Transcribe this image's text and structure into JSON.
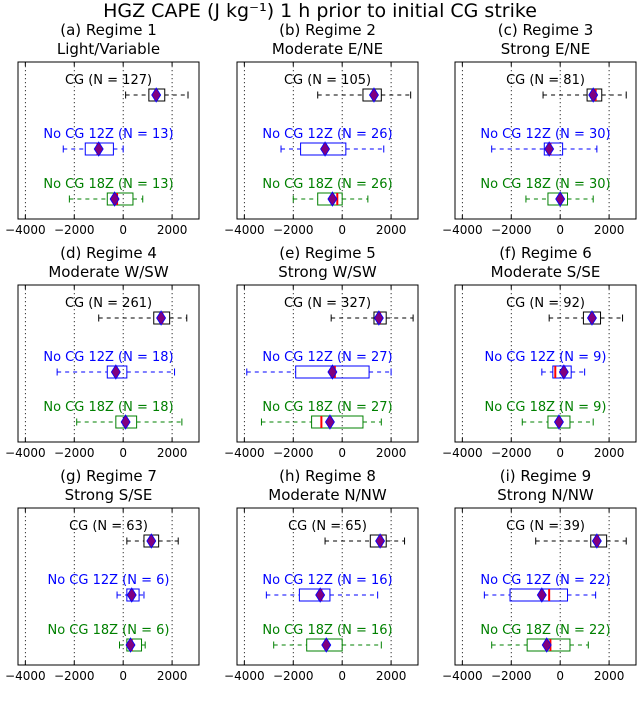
{
  "title": "HGZ CAPE (J kg⁻¹) 1 h prior to initial CG strike",
  "colors": {
    "cg": "#000000",
    "nocg12": "#0000ff",
    "nocg18": "#008000",
    "median": "#ff0000",
    "mean_fill": "#800080",
    "mean_edge": "#0000ff"
  },
  "chart_data": [
    {
      "type": "box",
      "title": "(a) Regime 1",
      "subtitle": "Light/Variable",
      "xlim": [
        -4300,
        3100
      ],
      "xticks": [
        -4000,
        -2000,
        0,
        2000
      ],
      "grid": "vertical dotted",
      "series": [
        {
          "label": "CG (N = 127)",
          "min": 100,
          "q1": 1050,
          "median": 1350,
          "q3": 1700,
          "max": 2650,
          "mean": 1350
        },
        {
          "label": "No CG 12Z (N = 13)",
          "min": -2450,
          "q1": -1550,
          "median": -1050,
          "q3": -400,
          "max": 0,
          "mean": -1000
        },
        {
          "label": "No CG 18Z (N = 13)",
          "min": -2200,
          "q1": -650,
          "median": -250,
          "q3": 400,
          "max": 800,
          "mean": -350
        }
      ]
    },
    {
      "type": "box",
      "title": "(b) Regime 2",
      "subtitle": "Moderate E/NE",
      "xlim": [
        -4300,
        3100
      ],
      "xticks": [
        -4000,
        -2000,
        0,
        2000
      ],
      "grid": "vertical dotted",
      "series": [
        {
          "label": "CG (N = 105)",
          "min": -1000,
          "q1": 850,
          "median": 1300,
          "q3": 1600,
          "max": 2800,
          "mean": 1300
        },
        {
          "label": "No CG 12Z (N = 26)",
          "min": -2500,
          "q1": -1700,
          "median": -700,
          "q3": 150,
          "max": 1700,
          "mean": -700
        },
        {
          "label": "No CG 18Z (N = 26)",
          "min": -2000,
          "q1": -1000,
          "median": -200,
          "q3": 0,
          "max": 1050,
          "mean": -400
        }
      ]
    },
    {
      "type": "box",
      "title": "(c) Regime 3",
      "subtitle": "Strong E/NE",
      "xlim": [
        -4300,
        3100
      ],
      "xticks": [
        -4000,
        -2000,
        0,
        2000
      ],
      "grid": "vertical dotted",
      "series": [
        {
          "label": "CG (N = 81)",
          "min": -700,
          "q1": 1100,
          "median": 1450,
          "q3": 1700,
          "max": 2700,
          "mean": 1350
        },
        {
          "label": "No CG 12Z (N = 30)",
          "min": -2800,
          "q1": -650,
          "median": -400,
          "q3": 100,
          "max": 1500,
          "mean": -450
        },
        {
          "label": "No CG 18Z (N = 30)",
          "min": -1400,
          "q1": -500,
          "median": 0,
          "q3": 300,
          "max": 1350,
          "mean": 0
        }
      ]
    },
    {
      "type": "box",
      "title": "(d) Regime 4",
      "subtitle": "Moderate W/SW",
      "xlim": [
        -4300,
        3100
      ],
      "xticks": [
        -4000,
        -2000,
        0,
        2000
      ],
      "grid": "vertical dotted",
      "series": [
        {
          "label": "CG (N = 261)",
          "min": -1000,
          "q1": 1250,
          "median": 1600,
          "q3": 1900,
          "max": 2600,
          "mean": 1550
        },
        {
          "label": "No CG 12Z (N = 18)",
          "min": -2700,
          "q1": -650,
          "median": -300,
          "q3": 150,
          "max": 2100,
          "mean": -300
        },
        {
          "label": "No CG 18Z (N = 18)",
          "min": -1900,
          "q1": -300,
          "median": 100,
          "q3": 550,
          "max": 2400,
          "mean": 100
        }
      ]
    },
    {
      "type": "box",
      "title": "(e) Regime 5",
      "subtitle": "Strong W/SW",
      "xlim": [
        -4300,
        3100
      ],
      "xticks": [
        -4000,
        -2000,
        0,
        2000
      ],
      "grid": "vertical dotted",
      "series": [
        {
          "label": "CG (N = 327)",
          "min": -450,
          "q1": 1300,
          "median": 1550,
          "q3": 1800,
          "max": 2900,
          "mean": 1500
        },
        {
          "label": "No CG 12Z (N = 27)",
          "min": -3900,
          "q1": -1900,
          "median": -300,
          "q3": 1100,
          "max": 2000,
          "mean": -400
        },
        {
          "label": "No CG 18Z (N = 27)",
          "min": -3300,
          "q1": -1250,
          "median": -850,
          "q3": 850,
          "max": 1600,
          "mean": -500
        }
      ]
    },
    {
      "type": "box",
      "title": "(f) Regime 6",
      "subtitle": "Moderate S/SE",
      "xlim": [
        -4300,
        3100
      ],
      "xticks": [
        -4000,
        -2000,
        0,
        2000
      ],
      "grid": "vertical dotted",
      "series": [
        {
          "label": "CG (N = 92)",
          "min": -450,
          "q1": 950,
          "median": 1300,
          "q3": 1650,
          "max": 2550,
          "mean": 1300
        },
        {
          "label": "No CG 12Z (N = 9)",
          "min": -750,
          "q1": -300,
          "median": -200,
          "q3": 450,
          "max": 1000,
          "mean": 150
        },
        {
          "label": "No CG 18Z (N = 9)",
          "min": -1550,
          "q1": -500,
          "median": -50,
          "q3": 400,
          "max": 1350,
          "mean": -50
        }
      ]
    },
    {
      "type": "box",
      "title": "(g) Regime 7",
      "subtitle": "Strong S/SE",
      "xlim": [
        -4300,
        3100
      ],
      "xticks": [
        -4000,
        -2000,
        0,
        2000
      ],
      "grid": "vertical dotted",
      "series": [
        {
          "label": "CG (N = 63)",
          "min": 150,
          "q1": 850,
          "median": 1150,
          "q3": 1450,
          "max": 2250,
          "mean": 1150
        },
        {
          "label": "No CG 12Z (N = 6)",
          "min": -250,
          "q1": 150,
          "median": 350,
          "q3": 650,
          "max": 850,
          "mean": 350
        },
        {
          "label": "No CG 18Z (N = 6)",
          "min": -150,
          "q1": 150,
          "median": 350,
          "q3": 750,
          "max": 900,
          "mean": 300
        }
      ]
    },
    {
      "type": "box",
      "title": "(h) Regime 8",
      "subtitle": "Moderate N/NW",
      "xlim": [
        -4300,
        3100
      ],
      "xticks": [
        -4000,
        -2000,
        0,
        2000
      ],
      "grid": "vertical dotted",
      "series": [
        {
          "label": "CG (N = 65)",
          "min": -700,
          "q1": 1150,
          "median": 1600,
          "q3": 1800,
          "max": 2550,
          "mean": 1550
        },
        {
          "label": "No CG 12Z (N = 16)",
          "min": -3100,
          "q1": -1750,
          "median": -850,
          "q3": -500,
          "max": 1450,
          "mean": -900
        },
        {
          "label": "No CG 18Z (N = 16)",
          "min": -2800,
          "q1": -1450,
          "median": -650,
          "q3": 0,
          "max": 1600,
          "mean": -650
        }
      ]
    },
    {
      "type": "box",
      "title": "(i) Regime 9",
      "subtitle": "Strong N/NW",
      "xlim": [
        -4300,
        3100
      ],
      "xticks": [
        -4000,
        -2000,
        0,
        2000
      ],
      "grid": "vertical dotted",
      "series": [
        {
          "label": "CG (N = 39)",
          "min": -1000,
          "q1": 1250,
          "median": 1550,
          "q3": 1900,
          "max": 2700,
          "mean": 1500
        },
        {
          "label": "No CG 12Z (N = 22)",
          "min": -3100,
          "q1": -2050,
          "median": -450,
          "q3": 300,
          "max": 1450,
          "mean": -750
        },
        {
          "label": "No CG 18Z (N = 22)",
          "min": -2800,
          "q1": -1350,
          "median": -400,
          "q3": 400,
          "max": 1150,
          "mean": -550
        }
      ]
    }
  ]
}
